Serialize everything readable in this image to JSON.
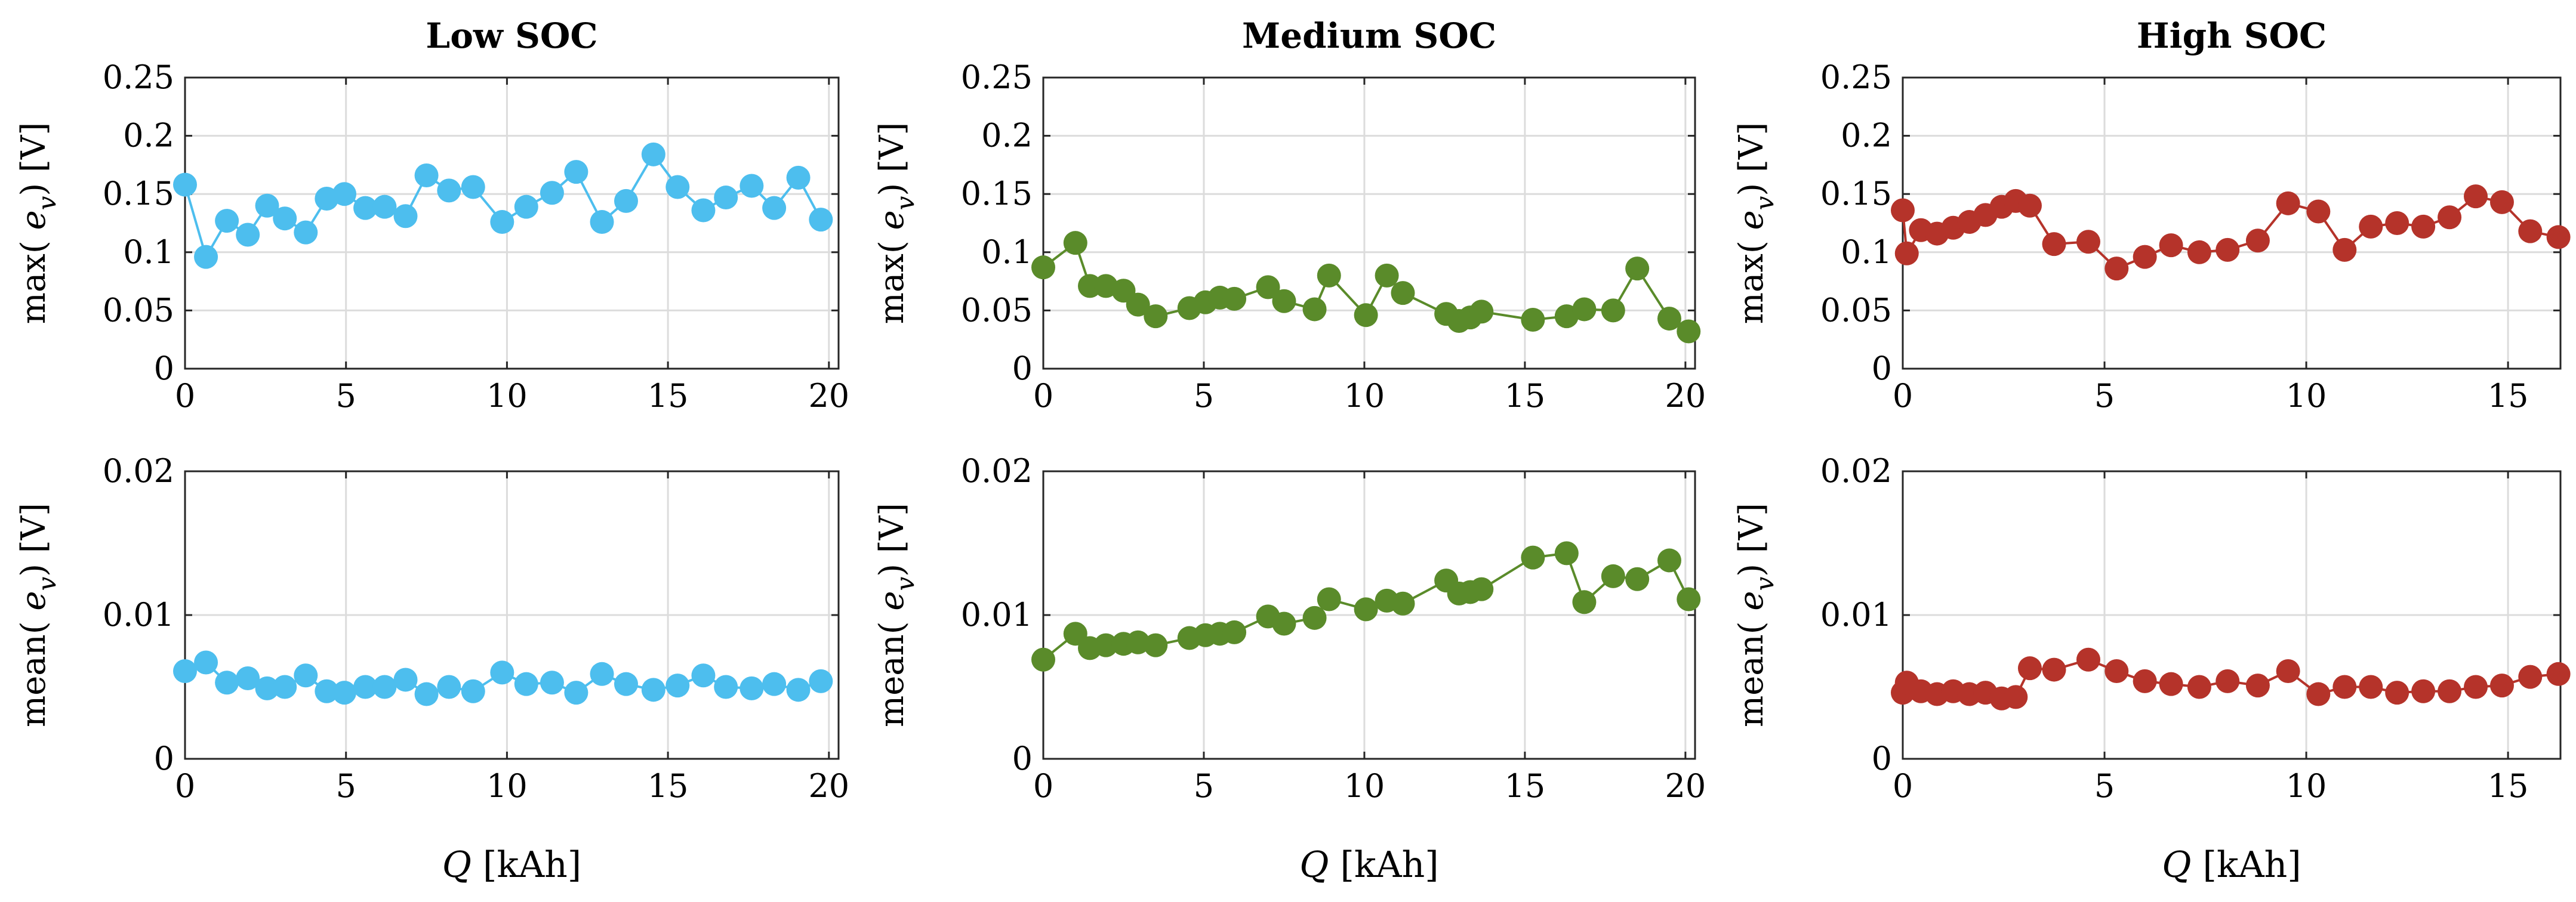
{
  "chart_data": [
    {
      "type": "line",
      "marker": "circle",
      "title": "Low SOC",
      "xlabel": "Q [kAh]",
      "ylabel": "max( e_v) [V]",
      "xlim": [
        0,
        20.3
      ],
      "ylim": [
        0,
        0.25
      ],
      "xticks": [
        "0",
        "5",
        "10",
        "15",
        "20"
      ],
      "yticks": [
        "0",
        "0.05",
        "0.1",
        "0.15",
        "0.2",
        "0.25"
      ],
      "color": "#4dbeee",
      "x": [
        0,
        0.65,
        1.3,
        1.95,
        2.55,
        3.1,
        3.75,
        4.4,
        4.95,
        5.6,
        6.2,
        6.85,
        7.5,
        8.2,
        8.95,
        9.85,
        10.6,
        11.4,
        12.15,
        12.95,
        13.7,
        14.55,
        15.3,
        16.1,
        16.8,
        17.6,
        18.3,
        19.05,
        19.75
      ],
      "y": [
        0.158,
        0.096,
        0.127,
        0.115,
        0.14,
        0.129,
        0.117,
        0.146,
        0.15,
        0.138,
        0.139,
        0.131,
        0.166,
        0.153,
        0.156,
        0.126,
        0.139,
        0.151,
        0.169,
        0.126,
        0.144,
        0.184,
        0.156,
        0.136,
        0.147,
        0.157,
        0.138,
        0.164,
        0.128
      ]
    },
    {
      "type": "line",
      "marker": "circle",
      "title": "Medium SOC",
      "xlabel": "Q [kAh]",
      "ylabel": "max( e_v) [V]",
      "xlim": [
        0,
        20.3
      ],
      "ylim": [
        0,
        0.25
      ],
      "xticks": [
        "0",
        "5",
        "10",
        "15",
        "20"
      ],
      "yticks": [
        "0",
        "0.05",
        "0.1",
        "0.15",
        "0.2",
        "0.25"
      ],
      "color": "#5a8b2a",
      "x": [
        0,
        1.0,
        1.45,
        1.95,
        2.5,
        2.95,
        3.5,
        4.55,
        5.05,
        5.5,
        5.95,
        7.0,
        7.5,
        8.45,
        8.9,
        10.05,
        10.7,
        11.2,
        12.55,
        12.95,
        13.3,
        13.65,
        15.25,
        16.3,
        16.85,
        17.75,
        18.5,
        19.5,
        20.1
      ],
      "y": [
        0.087,
        0.108,
        0.071,
        0.071,
        0.067,
        0.055,
        0.045,
        0.052,
        0.057,
        0.061,
        0.06,
        0.07,
        0.058,
        0.051,
        0.08,
        0.046,
        0.08,
        0.065,
        0.047,
        0.041,
        0.044,
        0.049,
        0.042,
        0.045,
        0.051,
        0.05,
        0.086,
        0.043,
        0.032
      ]
    },
    {
      "type": "line",
      "marker": "circle",
      "title": "High SOC",
      "xlabel": "Q [kAh]",
      "ylabel": "max( e_v) [V]",
      "xlim": [
        0,
        16.3
      ],
      "ylim": [
        0,
        0.25
      ],
      "xticks": [
        "0",
        "5",
        "10",
        "15"
      ],
      "yticks": [
        "0",
        "0.05",
        "0.1",
        "0.15",
        "0.2",
        "0.25"
      ],
      "color": "#b5332a",
      "x": [
        0,
        0.1,
        0.45,
        0.85,
        1.25,
        1.65,
        2.05,
        2.45,
        2.8,
        3.15,
        3.75,
        4.6,
        5.3,
        6.0,
        6.65,
        7.35,
        8.05,
        8.8,
        9.55,
        10.3,
        10.95,
        11.6,
        12.25,
        12.9,
        13.55,
        14.2,
        14.85,
        15.55,
        16.25
      ],
      "y": [
        0.136,
        0.099,
        0.119,
        0.116,
        0.121,
        0.126,
        0.132,
        0.139,
        0.144,
        0.14,
        0.107,
        0.109,
        0.086,
        0.096,
        0.106,
        0.1,
        0.102,
        0.11,
        0.142,
        0.135,
        0.102,
        0.122,
        0.125,
        0.122,
        0.13,
        0.148,
        0.143,
        0.118,
        0.113
      ]
    },
    {
      "type": "line",
      "marker": "circle",
      "xlabel": "Q [kAh]",
      "ylabel": "mean( e_v) [V]",
      "xlim": [
        0,
        20.3
      ],
      "ylim": [
        0,
        0.02
      ],
      "xticks": [
        "0",
        "5",
        "10",
        "15",
        "20"
      ],
      "yticks": [
        "0",
        "0.01",
        "0.02"
      ],
      "color": "#4dbeee",
      "x": [
        0,
        0.65,
        1.3,
        1.95,
        2.55,
        3.1,
        3.75,
        4.4,
        4.95,
        5.6,
        6.2,
        6.85,
        7.5,
        8.2,
        8.95,
        9.85,
        10.6,
        11.4,
        12.15,
        12.95,
        13.7,
        14.55,
        15.3,
        16.1,
        16.8,
        17.6,
        18.3,
        19.05,
        19.75
      ],
      "y": [
        0.0061,
        0.0067,
        0.0053,
        0.0056,
        0.0049,
        0.005,
        0.0058,
        0.0047,
        0.0046,
        0.005,
        0.005,
        0.0055,
        0.0045,
        0.005,
        0.0047,
        0.006,
        0.0052,
        0.0053,
        0.0046,
        0.0059,
        0.0052,
        0.0048,
        0.0051,
        0.0058,
        0.005,
        0.0049,
        0.0052,
        0.0048,
        0.0054
      ]
    },
    {
      "type": "line",
      "marker": "circle",
      "xlabel": "Q [kAh]",
      "ylabel": "mean( e_v) [V]",
      "xlim": [
        0,
        20.3
      ],
      "ylim": [
        0,
        0.02
      ],
      "xticks": [
        "0",
        "5",
        "10",
        "15",
        "20"
      ],
      "yticks": [
        "0",
        "0.01",
        "0.02"
      ],
      "color": "#5a8b2a",
      "x": [
        0,
        1.0,
        1.45,
        1.95,
        2.5,
        2.95,
        3.5,
        4.55,
        5.05,
        5.5,
        5.95,
        7.0,
        7.5,
        8.45,
        8.9,
        10.05,
        10.7,
        11.2,
        12.55,
        12.95,
        13.3,
        13.65,
        15.25,
        16.3,
        16.85,
        17.75,
        18.5,
        19.5,
        20.1
      ],
      "y": [
        0.0069,
        0.0087,
        0.0077,
        0.0079,
        0.008,
        0.0081,
        0.0079,
        0.0084,
        0.0086,
        0.0087,
        0.0088,
        0.0099,
        0.0094,
        0.0098,
        0.0111,
        0.0104,
        0.011,
        0.0108,
        0.0124,
        0.0115,
        0.0116,
        0.0118,
        0.014,
        0.0143,
        0.0109,
        0.0127,
        0.0125,
        0.0138,
        0.0111
      ]
    },
    {
      "type": "line",
      "marker": "circle",
      "xlabel": "Q [kAh]",
      "ylabel": "mean( e_v) [V]",
      "xlim": [
        0,
        16.3
      ],
      "ylim": [
        0,
        0.02
      ],
      "xticks": [
        "0",
        "5",
        "10",
        "15"
      ],
      "yticks": [
        "0",
        "0.01",
        "0.02"
      ],
      "color": "#b5332a",
      "x": [
        0,
        0.1,
        0.45,
        0.85,
        1.25,
        1.65,
        2.05,
        2.45,
        2.8,
        3.15,
        3.75,
        4.6,
        5.3,
        6.0,
        6.65,
        7.35,
        8.05,
        8.8,
        9.55,
        10.3,
        10.95,
        11.6,
        12.25,
        12.9,
        13.55,
        14.2,
        14.85,
        15.55,
        16.25
      ],
      "y": [
        0.0046,
        0.0053,
        0.0047,
        0.0045,
        0.0047,
        0.0045,
        0.0046,
        0.0042,
        0.0043,
        0.0063,
        0.0062,
        0.0069,
        0.0061,
        0.0054,
        0.0052,
        0.005,
        0.0054,
        0.0051,
        0.0061,
        0.0045,
        0.005,
        0.005,
        0.0046,
        0.0047,
        0.0047,
        0.005,
        0.0051,
        0.0057,
        0.0059
      ]
    }
  ]
}
